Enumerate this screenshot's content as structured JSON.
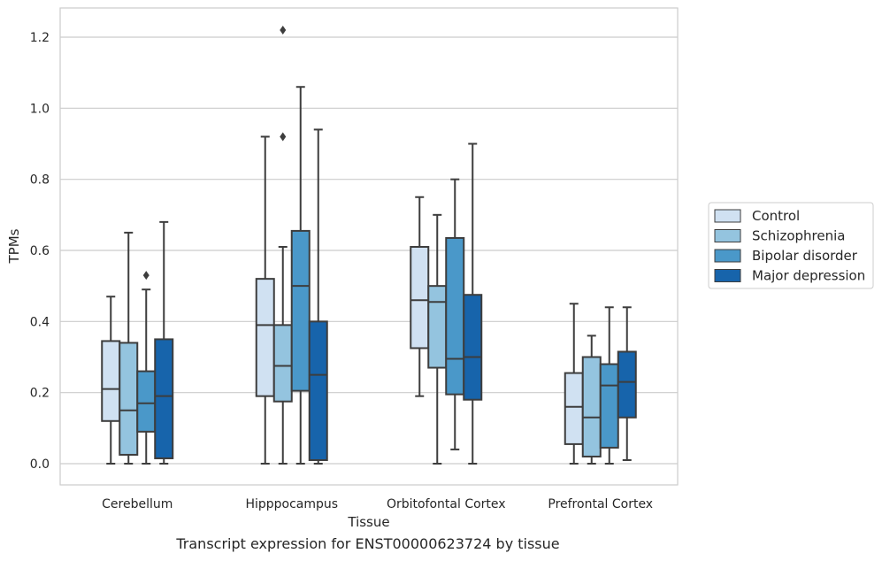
{
  "chart_data": {
    "type": "box",
    "xlabel": "Tissue",
    "ylabel": "TPMs",
    "ylim": [
      -0.06,
      1.28
    ],
    "yticks": [
      "0.0",
      "0.2",
      "0.4",
      "0.6",
      "0.8",
      "1.0",
      "1.2"
    ],
    "categories": [
      "Cerebellum",
      "Hipppocampus",
      "Orbitofontal Cortex",
      "Prefrontal Cortex"
    ],
    "legend_position": "right",
    "grid": true,
    "series": [
      {
        "name": "Control",
        "color": "#d0e1f2",
        "boxes": [
          {
            "whislo": 0.0,
            "q1": 0.12,
            "med": 0.21,
            "q3": 0.345,
            "whishi": 0.47,
            "fliers": []
          },
          {
            "whislo": 0.0,
            "q1": 0.19,
            "med": 0.39,
            "q3": 0.52,
            "whishi": 0.92,
            "fliers": []
          },
          {
            "whislo": 0.19,
            "q1": 0.325,
            "med": 0.46,
            "q3": 0.61,
            "whishi": 0.75,
            "fliers": []
          },
          {
            "whislo": 0.0,
            "q1": 0.055,
            "med": 0.16,
            "q3": 0.255,
            "whishi": 0.45,
            "fliers": []
          }
        ]
      },
      {
        "name": "Schizophrenia",
        "color": "#94c4df",
        "boxes": [
          {
            "whislo": 0.0,
            "q1": 0.025,
            "med": 0.15,
            "q3": 0.34,
            "whishi": 0.65,
            "fliers": []
          },
          {
            "whislo": 0.0,
            "q1": 0.175,
            "med": 0.275,
            "q3": 0.39,
            "whishi": 0.61,
            "fliers": [
              0.92,
              1.22
            ]
          },
          {
            "whislo": 0.0,
            "q1": 0.27,
            "med": 0.455,
            "q3": 0.5,
            "whishi": 0.7,
            "fliers": []
          },
          {
            "whislo": 0.0,
            "q1": 0.02,
            "med": 0.13,
            "q3": 0.3,
            "whishi": 0.36,
            "fliers": []
          }
        ]
      },
      {
        "name": "Bipolar disorder",
        "color": "#4a98c9",
        "boxes": [
          {
            "whislo": 0.0,
            "q1": 0.09,
            "med": 0.17,
            "q3": 0.26,
            "whishi": 0.49,
            "fliers": [
              0.53
            ]
          },
          {
            "whislo": 0.0,
            "q1": 0.205,
            "med": 0.5,
            "q3": 0.655,
            "whishi": 1.06,
            "fliers": []
          },
          {
            "whislo": 0.04,
            "q1": 0.195,
            "med": 0.295,
            "q3": 0.635,
            "whishi": 0.8,
            "fliers": []
          },
          {
            "whislo": 0.0,
            "q1": 0.045,
            "med": 0.22,
            "q3": 0.28,
            "whishi": 0.44,
            "fliers": []
          }
        ]
      },
      {
        "name": "Major depression",
        "color": "#1764ab",
        "boxes": [
          {
            "whislo": 0.0,
            "q1": 0.015,
            "med": 0.19,
            "q3": 0.35,
            "whishi": 0.68,
            "fliers": []
          },
          {
            "whislo": 0.0,
            "q1": 0.01,
            "med": 0.25,
            "q3": 0.4,
            "whishi": 0.94,
            "fliers": []
          },
          {
            "whislo": 0.0,
            "q1": 0.18,
            "med": 0.3,
            "q3": 0.475,
            "whishi": 0.9,
            "fliers": []
          },
          {
            "whislo": 0.01,
            "q1": 0.13,
            "med": 0.23,
            "q3": 0.315,
            "whishi": 0.44,
            "fliers": []
          }
        ]
      }
    ]
  },
  "caption": "Transcript expression for ENST00000623724 by tissue"
}
